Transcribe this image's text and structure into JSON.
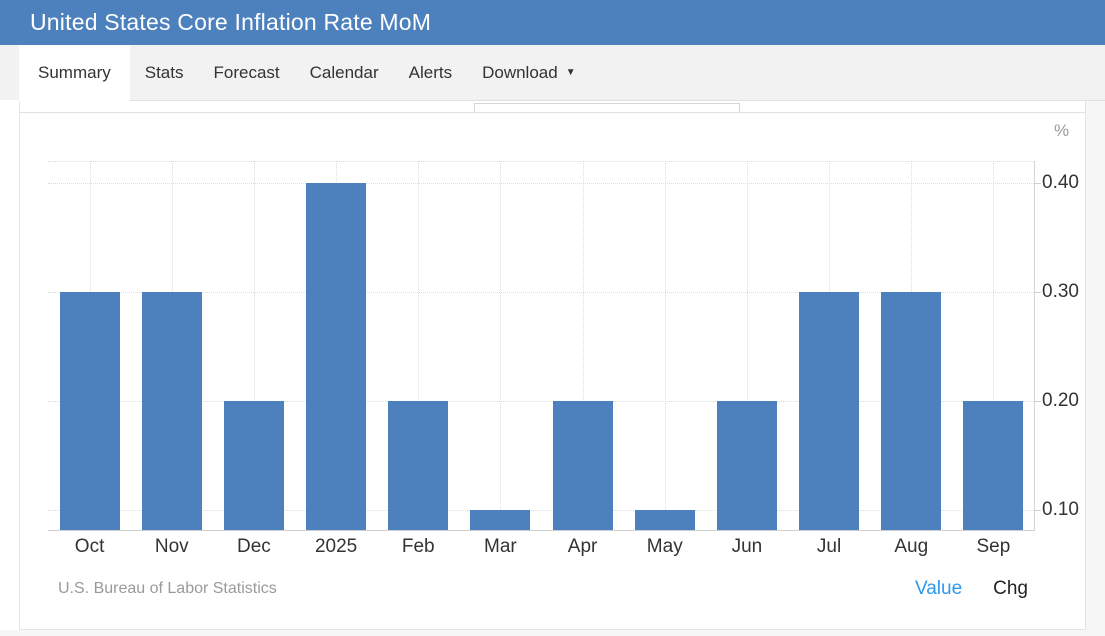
{
  "header": {
    "title": "United States Core Inflation Rate MoM"
  },
  "tabs": {
    "caret_glyph": "▼",
    "items": [
      {
        "label": "Summary",
        "active": true,
        "has_caret": false
      },
      {
        "label": "Stats",
        "active": false,
        "has_caret": false
      },
      {
        "label": "Forecast",
        "active": false,
        "has_caret": false
      },
      {
        "label": "Calendar",
        "active": false,
        "has_caret": false
      },
      {
        "label": "Alerts",
        "active": false,
        "has_caret": false
      },
      {
        "label": "Download",
        "active": false,
        "has_caret": true
      }
    ]
  },
  "chart_data": {
    "type": "bar",
    "title": "United States Core Inflation Rate MoM",
    "unit_label": "%",
    "categories": [
      "Oct",
      "Nov",
      "Dec",
      "2025",
      "Feb",
      "Mar",
      "Apr",
      "May",
      "Jun",
      "Jul",
      "Aug",
      "Sep"
    ],
    "values": [
      0.3,
      0.3,
      0.2,
      0.4,
      0.2,
      0.1,
      0.2,
      0.1,
      0.2,
      0.3,
      0.3,
      0.2
    ],
    "ylim": [
      0.082,
      0.42
    ],
    "yticks": [
      0.4,
      0.3,
      0.2,
      0.1
    ],
    "ytick_labels": [
      "0.40",
      "0.30",
      "0.20",
      "0.10"
    ],
    "grid": true,
    "legend_position": "bottom-right",
    "source": "U.S. Bureau of Labor Statistics",
    "legend": [
      {
        "label": "Value",
        "active": true,
        "color": "#2e97f0"
      },
      {
        "label": "Chg",
        "active": false,
        "color": "#222222"
      }
    ]
  },
  "colors": {
    "header_bg": "#4d81bd",
    "bar": "#4d81bd",
    "value_link": "#2e97f0"
  }
}
